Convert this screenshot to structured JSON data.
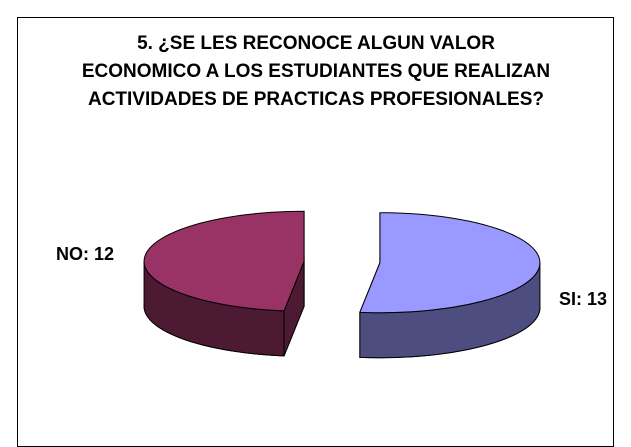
{
  "chart_data": {
    "type": "pie3d",
    "title": "5. ¿SE LES RECONOCE ALGUN VALOR ECONOMICO A LOS ESTUDIANTES QUE REALIZAN ACTIVIDADES DE PRACTICAS PROFESIONALES?",
    "values": [
      13,
      12
    ],
    "value_labels": [
      "SI: 13",
      "NO: 12"
    ],
    "colors": [
      "#9999ff",
      "#993366"
    ]
  }
}
